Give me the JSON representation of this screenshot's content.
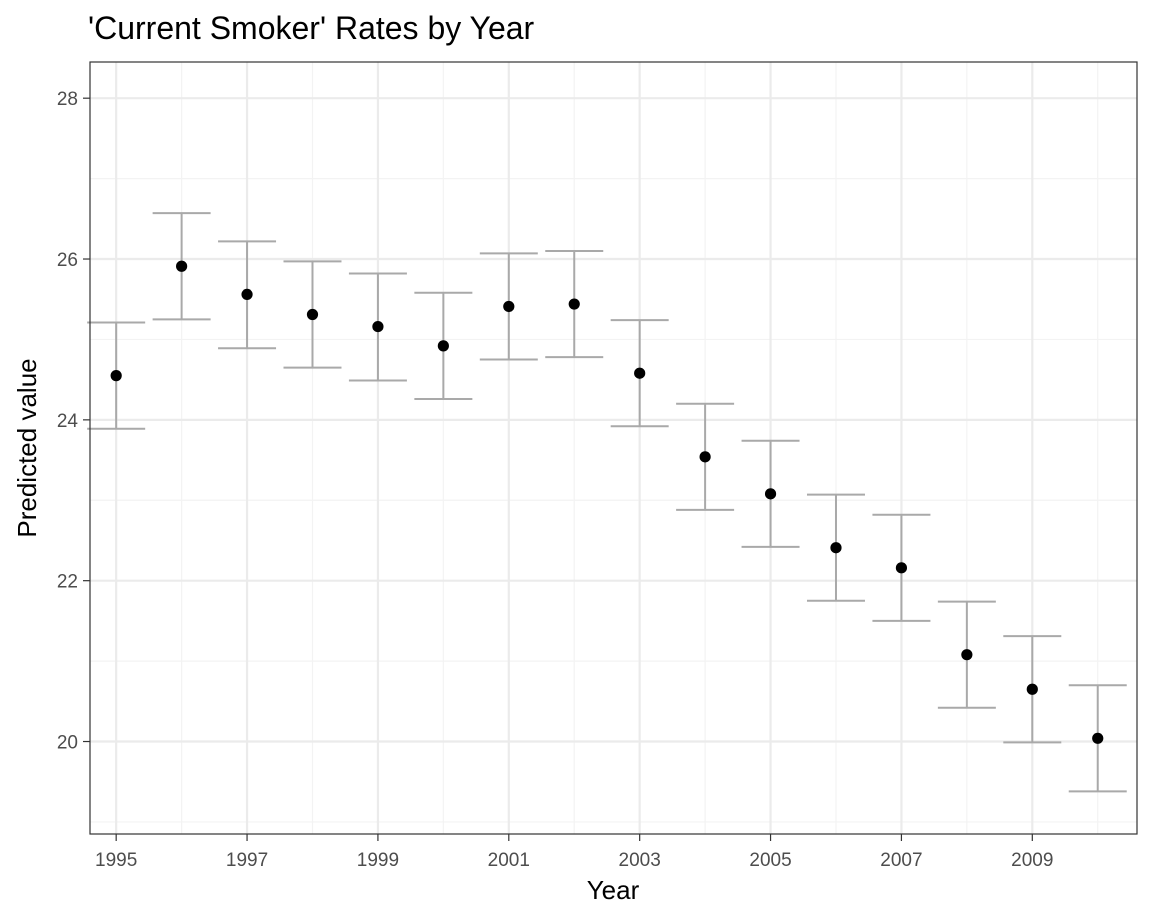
{
  "chart_data": {
    "type": "scatter",
    "title": "'Current Smoker' Rates by Year",
    "xlabel": "Year",
    "ylabel": "Predicted value",
    "xlim": [
      1994.6,
      2010.6
    ],
    "ylim": [
      18.85,
      28.45
    ],
    "x_ticks": [
      1995,
      1997,
      1999,
      2001,
      2003,
      2005,
      2007,
      2009
    ],
    "y_ticks": [
      20,
      22,
      24,
      26,
      28
    ],
    "grid": true,
    "legend": "none",
    "series": [
      {
        "x": [
          1995,
          1996,
          1997,
          1998,
          1999,
          2000,
          2001,
          2002,
          2003,
          2004,
          2005,
          2006,
          2007,
          2008,
          2009,
          2010
        ],
        "values": [
          24.55,
          25.91,
          25.56,
          25.31,
          25.16,
          24.92,
          25.41,
          25.44,
          24.58,
          23.54,
          23.08,
          22.41,
          22.16,
          21.08,
          20.65,
          20.04
        ],
        "lower": [
          23.89,
          25.25,
          24.89,
          24.65,
          24.49,
          24.26,
          24.75,
          24.78,
          23.92,
          22.88,
          22.42,
          21.75,
          21.5,
          20.42,
          19.99,
          19.38
        ],
        "upper": [
          25.21,
          26.57,
          26.22,
          25.97,
          25.82,
          25.58,
          26.07,
          26.1,
          25.24,
          24.2,
          23.74,
          23.07,
          22.82,
          21.74,
          21.31,
          20.7
        ]
      }
    ],
    "colors": {
      "point": "#000000",
      "errorbar": "#a9a9a9",
      "grid_major": "#ebebeb",
      "grid_minor": "#f3f3f3",
      "panel_border": "#333333",
      "tick_label": "#4d4d4d"
    }
  }
}
